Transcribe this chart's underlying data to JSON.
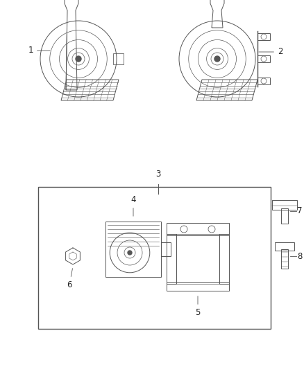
{
  "bg_color": "#ffffff",
  "line_color": "#555555",
  "lw": 0.7,
  "fig_width": 4.38,
  "fig_height": 5.33,
  "dpi": 100
}
